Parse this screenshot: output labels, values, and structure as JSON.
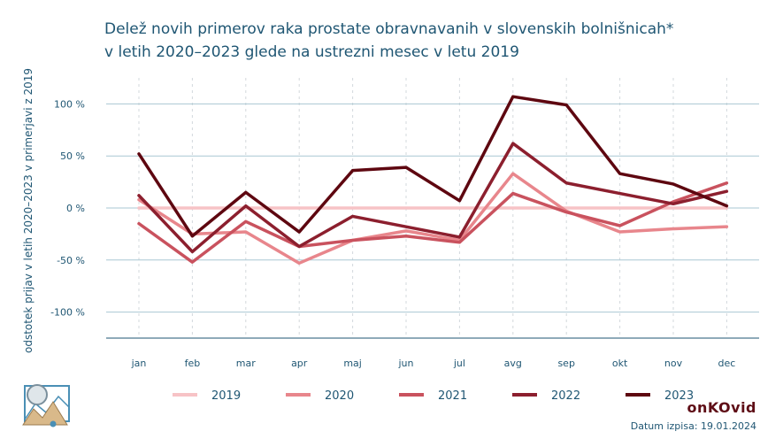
{
  "title_line1": "Delež novih primerov raka prostate obravnavanih v slovenskih bolnišnicah*",
  "title_line2": "v letih 2020–2023 glede na ustrezni mesec v letu 2019",
  "brand": "onKOvid",
  "date_label": "Datum izpisa: 19.01.2024",
  "chart_data": {
    "type": "line",
    "ylabel": "odstotek prijav v letih 2020–2023 v primerjavi z 2019",
    "xlabel": "",
    "categories": [
      "jan",
      "feb",
      "mar",
      "apr",
      "maj",
      "jun",
      "jul",
      "avg",
      "sep",
      "okt",
      "nov",
      "dec"
    ],
    "ylim": [
      -125,
      125
    ],
    "yticks": [
      100,
      50,
      0,
      -50,
      -100
    ],
    "ytick_labels": [
      "100 %",
      "50 %",
      "0 %",
      "-50 %",
      "-100 %"
    ],
    "grid": true,
    "legend_position": "bottom",
    "series": [
      {
        "name": "2019",
        "color": "#f7c3c6",
        "values": [
          0,
          0,
          0,
          0,
          0,
          0,
          0,
          0,
          0,
          0,
          0,
          0
        ]
      },
      {
        "name": "2020",
        "color": "#e8868c",
        "values": [
          8,
          -25,
          -23,
          -53,
          -31,
          -22,
          -31,
          33,
          -3,
          -23,
          -20,
          -18
        ]
      },
      {
        "name": "2021",
        "color": "#c9525e",
        "values": [
          -15,
          -52,
          -13,
          -37,
          -31,
          -27,
          -33,
          14,
          -4,
          -17,
          6,
          24
        ]
      },
      {
        "name": "2022",
        "color": "#8c1f2e",
        "values": [
          12,
          -42,
          2,
          -37,
          -8,
          -18,
          -28,
          62,
          24,
          14,
          4,
          16
        ]
      },
      {
        "name": "2023",
        "color": "#5e0710",
        "values": [
          52,
          -27,
          15,
          -23,
          36,
          39,
          7,
          107,
          99,
          33,
          23,
          2
        ]
      }
    ]
  }
}
